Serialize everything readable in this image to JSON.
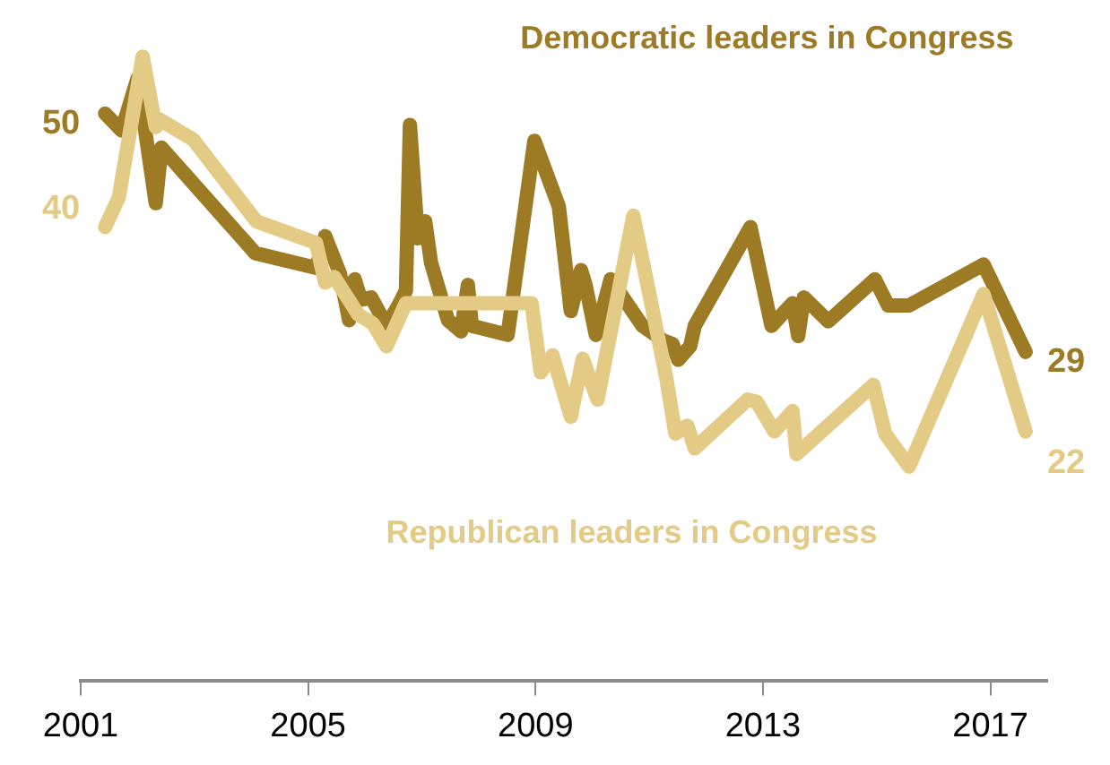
{
  "chart_data": {
    "type": "line",
    "xlim": [
      2001,
      2018
    ],
    "xticks": [
      2001,
      2005,
      2009,
      2013,
      2017
    ],
    "tick_labels": "x",
    "grid": false,
    "legend": false,
    "marker": "none",
    "line_style": "solid",
    "series": [
      {
        "name": "Democratic leaders in Congress",
        "color": "#9c7b24",
        "x": [
          2001.43,
          2001.72,
          2002.0,
          2002.32,
          2002.42,
          2004.07,
          2005.14,
          2005.3,
          2005.56,
          2005.72,
          2005.82,
          2005.93,
          2006.11,
          2006.38,
          2006.61,
          2006.72,
          2006.79,
          2006.93,
          2007.06,
          2007.16,
          2007.46,
          2007.69,
          2007.81,
          2007.88,
          2008.51,
          2008.98,
          2009.41,
          2009.62,
          2009.8,
          2009.88,
          2010.06,
          2010.32,
          2010.88,
          2011.25,
          2011.41,
          2011.51,
          2011.72,
          2011.8,
          2012.78,
          2013.15,
          2013.52,
          2013.62,
          2013.72,
          2014.15,
          2014.97,
          2015.2,
          2015.57,
          2016.88,
          2017.62
        ],
        "values": [
          50,
          48.5,
          53.1,
          42.1,
          47,
          37.7,
          36.4,
          39.2,
          35.9,
          31.8,
          35.4,
          33.6,
          33.8,
          31.3,
          33.3,
          34.4,
          49,
          39,
          40.5,
          36.9,
          31.8,
          30.8,
          34.9,
          31.3,
          30.5,
          47.6,
          41.8,
          32.6,
          36.2,
          34.9,
          30.5,
          35.4,
          31.3,
          30,
          29.7,
          28.3,
          29.5,
          31.3,
          40,
          31.3,
          33.3,
          30.4,
          33.8,
          31.7,
          35.4,
          33.1,
          33.1,
          36.7,
          29
        ],
        "value_labels": [
          "50",
          null,
          null,
          null,
          null,
          null,
          null,
          null,
          null,
          null,
          null,
          null,
          null,
          null,
          null,
          null,
          null,
          null,
          null,
          null,
          null,
          null,
          null,
          null,
          null,
          null,
          null,
          null,
          null,
          null,
          null,
          null,
          null,
          null,
          null,
          null,
          null,
          null,
          null,
          null,
          null,
          null,
          null,
          null,
          null,
          null,
          null,
          null,
          "29"
        ]
      },
      {
        "name": "Republican leaders in Congress",
        "color": "#e3cb85",
        "x": [
          2001.43,
          2001.67,
          2002.09,
          2002.32,
          2002.38,
          2002.98,
          2004.09,
          2005.14,
          2005.3,
          2005.46,
          2005.88,
          2006.14,
          2006.38,
          2006.72,
          2008.93,
          2009.09,
          2009.3,
          2009.62,
          2009.83,
          2010.09,
          2010.72,
          2010.99,
          2011.3,
          2011.46,
          2011.67,
          2011.8,
          2012.73,
          2012.89,
          2013.2,
          2013.52,
          2013.59,
          2014.94,
          2015.15,
          2015.57,
          2016.88,
          2017.62
        ],
        "values": [
          40,
          42.6,
          55,
          48.8,
          49.5,
          47.7,
          40.5,
          38.6,
          35.1,
          35.6,
          32.3,
          31.5,
          29.5,
          33.3,
          33.3,
          27.2,
          28.7,
          23.3,
          28.4,
          24.8,
          41,
          34.4,
          26.7,
          21.8,
          22.5,
          20.5,
          24.8,
          24.6,
          22,
          23.8,
          20,
          26.1,
          21.8,
          18.9,
          34.1,
          22
        ],
        "value_labels": [
          "40",
          null,
          null,
          null,
          null,
          null,
          null,
          null,
          null,
          null,
          null,
          null,
          null,
          null,
          null,
          null,
          null,
          null,
          null,
          null,
          null,
          null,
          null,
          null,
          null,
          null,
          null,
          null,
          null,
          null,
          null,
          null,
          null,
          null,
          null,
          "22"
        ]
      }
    ]
  }
}
